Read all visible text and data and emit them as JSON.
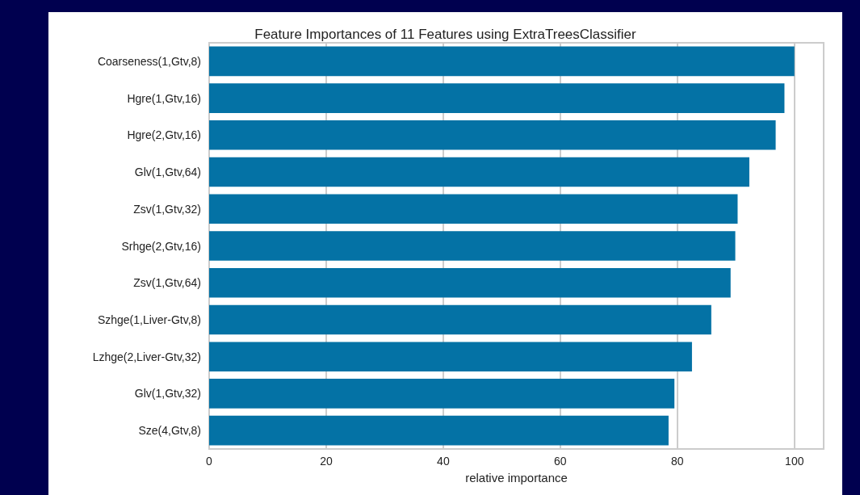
{
  "chart_data": {
    "type": "bar",
    "orientation": "horizontal",
    "title": "Feature Importances of 11 Features using ExtraTreesClassifier",
    "xlabel": "relative importance",
    "categories": [
      "Coarseness(1,Gtv,8)",
      "Hgre(1,Gtv,16)",
      "Hgre(2,Gtv,16)",
      "Glv(1,Gtv,64)",
      "Zsv(1,Gtv,32)",
      "Srhge(2,Gtv,16)",
      "Zsv(1,Gtv,64)",
      "Szhge(1,Liver-Gtv,8)",
      "Lzhge(2,Liver-Gtv,32)",
      "Glv(1,Gtv,32)",
      "Sze(4,Gtv,8)"
    ],
    "values": [
      100,
      98.3,
      96.8,
      92.3,
      90.3,
      89.9,
      89.1,
      85.8,
      82.5,
      79.5,
      78.5
    ],
    "color": "#0472a5",
    "xlim": [
      0,
      105
    ],
    "xticks": [
      0,
      20,
      40,
      60,
      80,
      100
    ],
    "grid": "x"
  }
}
